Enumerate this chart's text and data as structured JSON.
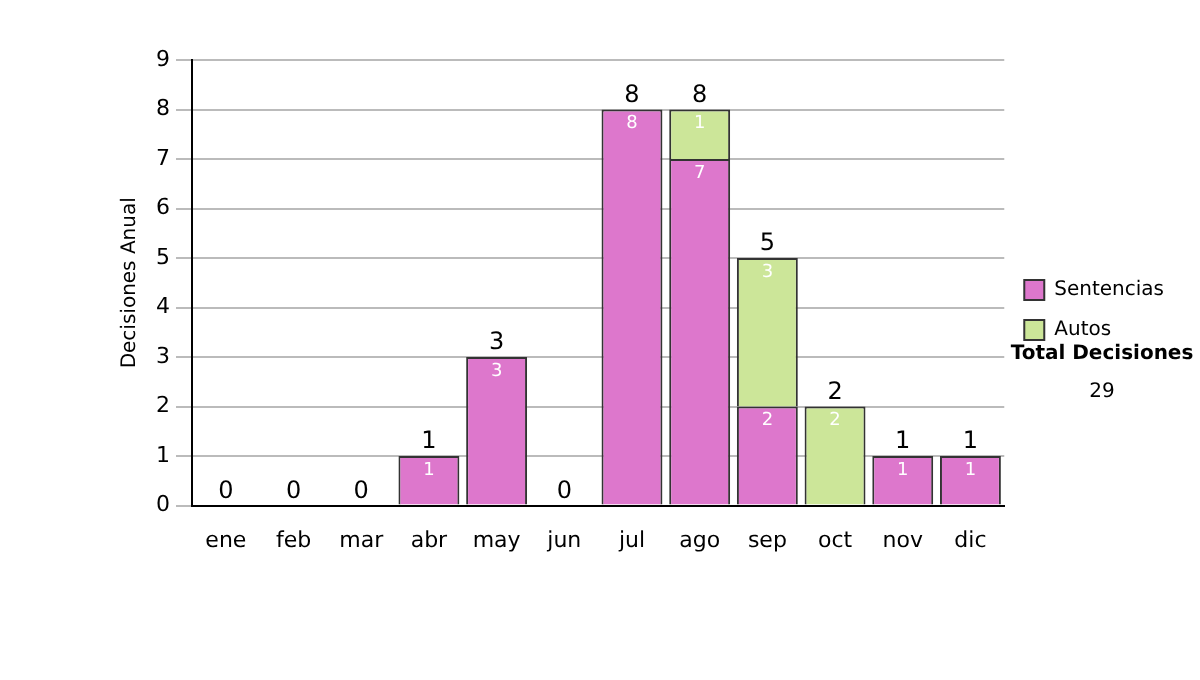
{
  "chart_data": {
    "type": "bar",
    "stacked": true,
    "ylabel": "Decisiones Anual",
    "categories": [
      "ene",
      "feb",
      "mar",
      "abr",
      "may",
      "jun",
      "jul",
      "ago",
      "sep",
      "oct",
      "nov",
      "dic"
    ],
    "series": [
      {
        "name": "Sentencias",
        "color": "#dd77cc",
        "values": [
          0,
          0,
          0,
          1,
          3,
          0,
          8,
          7,
          2,
          0,
          1,
          1
        ],
        "value_labels": [
          null,
          null,
          null,
          "1",
          "3",
          null,
          "8",
          "7",
          "2",
          null,
          "1",
          "1"
        ]
      },
      {
        "name": "Autos",
        "color": "#cce699",
        "values": [
          0,
          0,
          0,
          0,
          0,
          0,
          0,
          1,
          3,
          2,
          0,
          0
        ],
        "value_labels": [
          null,
          null,
          null,
          null,
          null,
          null,
          null,
          "1",
          "3",
          "2",
          null,
          null
        ]
      }
    ],
    "totals": [
      "0",
      "0",
      "0",
      "1",
      "3",
      "0",
      "8",
      "8",
      "5",
      "2",
      "1",
      "1"
    ],
    "ylim": [
      0,
      9
    ],
    "yticks": [
      0,
      1,
      2,
      3,
      4,
      5,
      6,
      7,
      8,
      9
    ],
    "grid": "y",
    "legend": "right",
    "annotations": [
      "Total Decisiones",
      "29"
    ]
  }
}
